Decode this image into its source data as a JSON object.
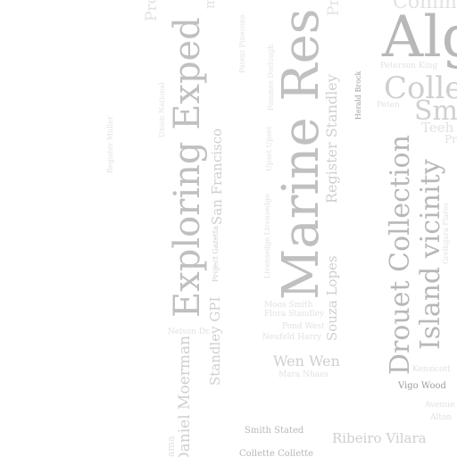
{
  "words": [
    "Algo",
    "Collec",
    "Smith",
    "Comm",
    "Marine Res",
    "Exploring Exped",
    "Drouet Collection",
    "Island vicinity",
    "Register Standley",
    "Souza Lopes",
    "San Francisco",
    "Standley GPI",
    "Daniel Moerman",
    "Wen Wen",
    "Ribeiro Vilara",
    "Vigo Wood",
    "Smith Stated",
    "Collette Collette",
    "Register Muller",
    "Union National",
    "Patent Pinecone",
    "Pommes Dorlough",
    "Upset Upset",
    "Livensedge Livensedge",
    "Project Gazetta",
    "Moos Smith",
    "Flora Standley",
    "Pond West",
    "Neufeld Harry",
    "Nelson Dr.",
    "Mara Nhaes",
    "Herald Brock",
    "Peterson King",
    "Peten",
    "Teeh",
    "Kensicott",
    "Avenue",
    "Alton",
    "Grelkgara Flares",
    "Pro",
    "Pro",
    "Pro",
    "ma",
    "ama"
  ]
}
